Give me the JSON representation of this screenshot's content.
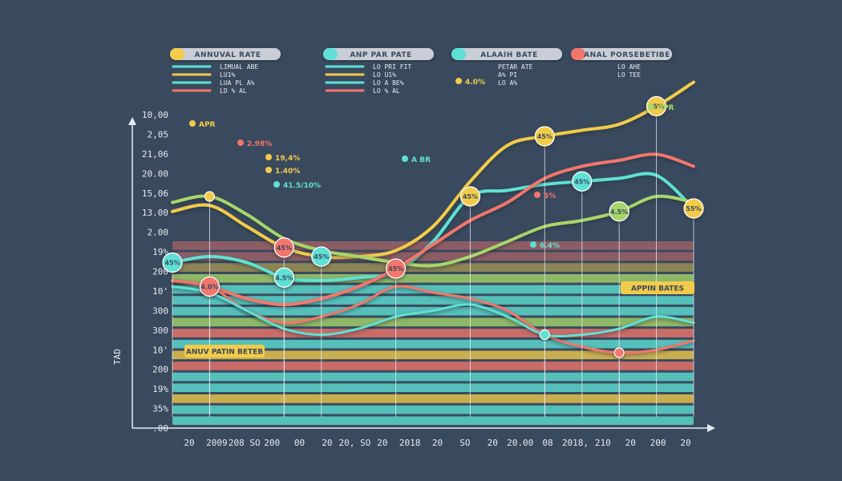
{
  "chart_data": {
    "type": "line",
    "title": "",
    "legends": [
      {
        "title": "ANNUVAL RATE",
        "color": "#f2cb4a",
        "items": [
          "LIMUAL ABE",
          "LU1%",
          "LUA PL A%",
          "LD % AL"
        ]
      },
      {
        "title": "ANP PAR PATE",
        "color": "#5ee0d5",
        "items": [
          "LO PRI FIT",
          "LO U1%",
          "LO A BE%",
          "LO % AL"
        ]
      },
      {
        "title": "ALAAIH BATE",
        "color": "#5ee0d5",
        "items": [
          "PETAR ATE",
          "A% PI",
          "LO A%",
          ""
        ]
      },
      {
        "title": "ANAL PORSEBETIBE",
        "color": "#f2766c",
        "items": [
          "LO AHE",
          "LO TEE",
          "",
          ""
        ]
      }
    ],
    "y_ticks": [
      "10,00",
      "2,05",
      "21,06",
      "20.00",
      "15,06",
      "13.00",
      "2.00",
      "19%",
      "200",
      "10'",
      "300",
      "300",
      "10'",
      "200",
      "19%",
      "35%",
      ".00"
    ],
    "y_axis_side_label": "TAD",
    "x_ticks": [
      "20",
      "2009",
      "208 SO",
      "200",
      "00",
      "20",
      "20, SO",
      "20",
      "2018",
      "20",
      "SO",
      "20",
      "20.00",
      "08",
      "2018,",
      "210",
      "20",
      "200",
      "20"
    ],
    "series": [
      {
        "name": "yellow",
        "color": "#f2cb4a",
        "values": [
          55,
          57,
          50,
          43,
          40,
          40,
          42,
          50,
          65,
          77,
          80,
          82,
          84,
          90,
          98
        ]
      },
      {
        "name": "teal",
        "color": "#5ee0d5",
        "values": [
          38,
          40,
          38,
          33,
          32,
          33,
          35,
          45,
          60,
          62,
          64,
          65,
          66,
          67,
          56
        ]
      },
      {
        "name": "green",
        "color": "#a6d66a",
        "values": [
          58,
          60,
          54,
          46,
          42,
          40,
          38,
          37,
          40,
          45,
          50,
          52,
          55,
          60,
          58
        ]
      },
      {
        "name": "coral",
        "color": "#f2766c",
        "values": [
          32,
          30,
          26,
          24,
          26,
          30,
          36,
          44,
          52,
          58,
          66,
          70,
          72,
          74,
          70
        ]
      },
      {
        "name": "coral-low",
        "color": "#f2766c",
        "values": [
          32,
          30,
          22,
          18,
          20,
          24,
          30,
          28,
          26,
          22,
          14,
          10,
          8,
          9,
          12
        ]
      },
      {
        "name": "teal-low",
        "color": "#5ee0d5",
        "values": [
          30,
          28,
          22,
          16,
          14,
          16,
          20,
          22,
          24,
          20,
          14,
          14,
          16,
          20,
          18
        ]
      }
    ],
    "markers": [
      {
        "label": "45%",
        "color": "#5ee0d5",
        "series": 1,
        "index": 0
      },
      {
        "label": "",
        "color": "#f2cb4a",
        "series": 2,
        "index": 1
      },
      {
        "label": "4.0%",
        "color": "#f2766c",
        "series": 3,
        "index": 1
      },
      {
        "label": "45%",
        "color": "#f2766c",
        "series": 0,
        "index": 3
      },
      {
        "label": "45%",
        "color": "#5ee0d5",
        "series": 0,
        "index": 4
      },
      {
        "label": "4.5%",
        "color": "#5ee0d5",
        "series": 1,
        "index": 3
      },
      {
        "label": "45%",
        "color": "#f2766c",
        "series": 3,
        "index": 6
      },
      {
        "label": "45%",
        "color": "#f2cb4a",
        "series": 0,
        "index": 10
      },
      {
        "label": "45%",
        "color": "#f2cb4a",
        "series": 1,
        "index": 8
      },
      {
        "label": "45%",
        "color": "#5ee0d5",
        "series": 1,
        "index": 11
      },
      {
        "label": "45%",
        "color": "#f2cb4a",
        "series": 0,
        "index": 13
      },
      {
        "label": "55%",
        "color": "#f2cb4a",
        "series": 1,
        "index": 14
      },
      {
        "label": "4.5%",
        "color": "#a6d66a",
        "series": 2,
        "index": 12
      },
      {
        "label": "",
        "color": "#f2766c",
        "series": 4,
        "index": 12
      },
      {
        "label": "",
        "color": "#5ee0d5",
        "series": 5,
        "index": 10
      }
    ],
    "annotations": [
      {
        "text": "APR",
        "color": "#f2cb4a"
      },
      {
        "text": "2.98%",
        "color": "#f2766c"
      },
      {
        "text": "19,4%",
        "color": "#f2cb4a"
      },
      {
        "text": "1.40%",
        "color": "#f2cb4a"
      },
      {
        "text": "41.5/10%",
        "color": "#5ee0d5"
      },
      {
        "text": "A BR",
        "color": "#5ee0d5"
      },
      {
        "text": "5%",
        "color": "#f2766c"
      },
      {
        "text": "6.4%",
        "color": "#5ee0d5"
      },
      {
        "text": "APR",
        "color": "#a6d66a"
      },
      {
        "text": "4.0%",
        "color": "#f2cb4a"
      }
    ],
    "tags": [
      {
        "text": "APPIN BATES",
        "color": "#f2cb4a"
      },
      {
        "text": "ANUV PATIN BETEB",
        "color": "#f2cb4a"
      }
    ],
    "bands": [
      "#f2766c",
      "#f2766c",
      "#f2cb4a",
      "#a6d66a",
      "#5ee0d5",
      "#5ee0d5",
      "#5ee0d5",
      "#a6d66a",
      "#f2766c",
      "#5ee0d5",
      "#f2cb4a",
      "#f2766c",
      "#5ee0d5",
      "#5ee0d5",
      "#f2cb4a",
      "#5ee0d5",
      "#5ee0d5"
    ],
    "ylim": [
      0,
      100
    ]
  }
}
